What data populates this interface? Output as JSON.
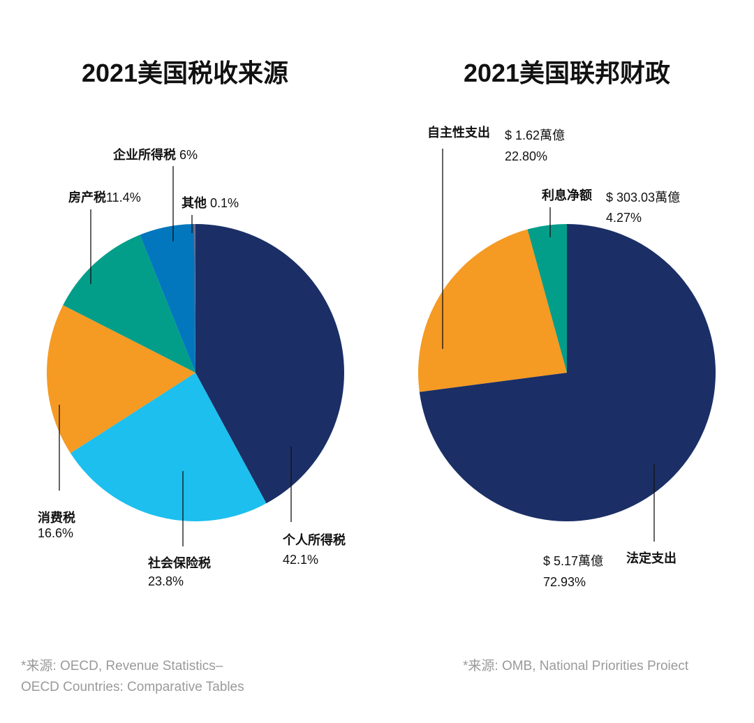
{
  "chart_data": [
    {
      "type": "pie",
      "title": "2021美国税收来源",
      "start": "12 o'clock, clockwise",
      "slices": [
        {
          "label": "个人所得税",
          "value": 42.1,
          "display": "42.1%",
          "color": "#1b2f66"
        },
        {
          "label": "社会保险税",
          "value": 23.8,
          "display": "23.8%",
          "color": "#1dbfee"
        },
        {
          "label": "消费税",
          "value": 16.6,
          "display": "16.6%",
          "color": "#f59a23"
        },
        {
          "label": "房产税",
          "value": 11.4,
          "display": "11.4%",
          "color": "#039e8a"
        },
        {
          "label": "企业所得税",
          "value": 6,
          "display": "6%",
          "color": "#0277bd"
        },
        {
          "label": "其他",
          "value": 0.1,
          "display": "0.1%",
          "color": "#d9434e"
        }
      ],
      "source": [
        "*来源: OECD, Revenue Statistics–",
        "OECD Countries: Comparative Tables"
      ]
    },
    {
      "type": "pie",
      "title": "2021美国联邦财政",
      "start": "12 o'clock, clockwise",
      "slices": [
        {
          "label": "法定支出",
          "value": 72.93,
          "amount": "$ 5.17萬億",
          "display": "72.93%",
          "color": "#1b2f66"
        },
        {
          "label": "自主性支出",
          "value": 22.8,
          "amount": "$ 1.62萬億",
          "display": "22.80%",
          "color": "#f59a23"
        },
        {
          "label": "利息净额",
          "value": 4.27,
          "amount": "$ 303.03萬億",
          "display": "4.27%",
          "color": "#039e8a"
        }
      ],
      "source": [
        "*来源: OMB, National Priorities Proiect"
      ]
    }
  ]
}
